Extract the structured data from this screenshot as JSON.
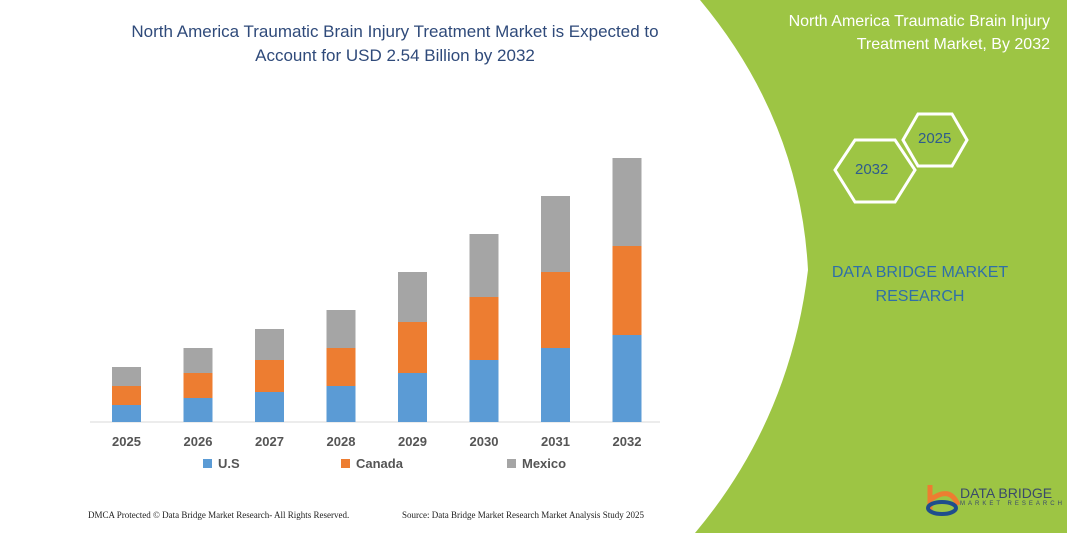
{
  "title": "North America Traumatic Brain Injury Treatment Market is Expected to Account for USD 2.54 Billion by 2032",
  "side_panel": {
    "title": "North America Traumatic Brain Injury Treatment Market, By 2032",
    "hex_years": [
      "2025",
      "2032"
    ],
    "brand": "DATA BRIDGE MARKET RESEARCH",
    "logo_text": "DATA BRIDGE",
    "logo_sub": "MARKET RESEARCH",
    "color": "#9dc544"
  },
  "footer": {
    "left": "DMCA Protected © Data Bridge Market Research- All Rights Reserved.",
    "right": "Source: Data Bridge Market Research Market Analysis Study 2025"
  },
  "chart_data": {
    "type": "bar",
    "stacked": true,
    "title": "",
    "xlabel": "",
    "ylabel": "",
    "grid": false,
    "legend": "bottom",
    "categories": [
      "2025",
      "2026",
      "2027",
      "2028",
      "2029",
      "2030",
      "2031",
      "2032"
    ],
    "series": [
      {
        "name": "U.S",
        "color": "#5b9bd5",
        "values": [
          17,
          24,
          30,
          36,
          49,
          62,
          74,
          87
        ]
      },
      {
        "name": "Canada",
        "color": "#ed7d31",
        "values": [
          19,
          25,
          32,
          38,
          51,
          63,
          76,
          89
        ]
      },
      {
        "name": "Mexico",
        "color": "#a5a5a5",
        "values": [
          19,
          25,
          31,
          38,
          50,
          63,
          76,
          88
        ]
      }
    ]
  }
}
